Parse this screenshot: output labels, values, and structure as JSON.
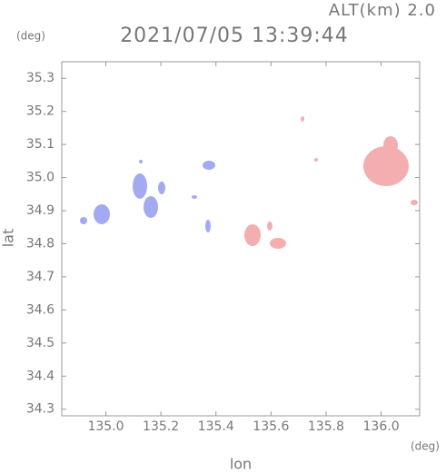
{
  "chart_data": {
    "type": "map",
    "title": "2021/07/05 13:39:44",
    "altitude_label": "ALT(km) 2.0",
    "y_unit": "(deg)",
    "x_unit": "(deg)",
    "xlabel": "lon",
    "ylabel": "lat",
    "xlim": [
      134.84,
      136.14
    ],
    "ylim": [
      34.28,
      35.35
    ],
    "xticks": [
      {
        "value": 135,
        "label": "135.0"
      },
      135.2,
      135.4,
      135.6,
      135.8,
      {
        "value": 136,
        "label": "136.0"
      }
    ],
    "yticks": [
      34.3,
      34.4,
      34.5,
      34.6,
      34.7,
      34.8,
      34.9,
      {
        "value": 35,
        "label": "35.0"
      },
      35.1,
      35.2,
      35.3
    ]
  }
}
